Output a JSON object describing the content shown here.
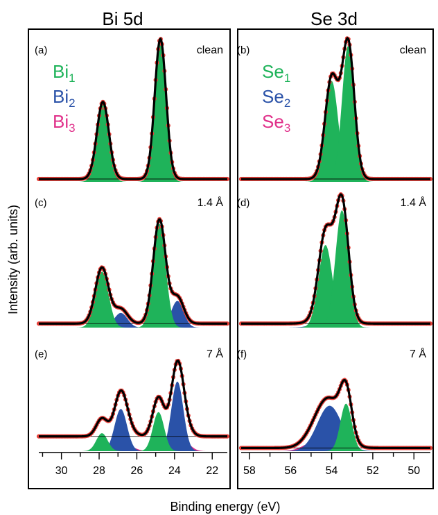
{
  "figure": {
    "ylabel": "Intensity (arb. units)",
    "xlabel": "Binding energy (eV)"
  },
  "columns": [
    {
      "title": "Bi 5d",
      "xlim": [
        31.2,
        21.2
      ],
      "ticks": [
        30,
        28,
        26,
        24,
        22
      ],
      "legend": [
        {
          "base": "Bi",
          "sub": "1",
          "color": "#1fb35a"
        },
        {
          "base": "Bi",
          "sub": "2",
          "color": "#2a52a8"
        },
        {
          "base": "Bi",
          "sub": "3",
          "color": "#e0308a"
        }
      ]
    },
    {
      "title": "Se 3d",
      "xlim": [
        58.4,
        49.2
      ],
      "ticks": [
        58,
        56,
        54,
        52,
        50
      ],
      "legend": [
        {
          "base": "Se",
          "sub": "1",
          "color": "#1fb35a"
        },
        {
          "base": "Se",
          "sub": "2",
          "color": "#2a52a8"
        },
        {
          "base": "Se",
          "sub": "3",
          "color": "#e0308a"
        }
      ]
    }
  ],
  "colors": {
    "component_1": "#1fb35a",
    "component_2": "#2a52a8",
    "component_3": "#e0308a",
    "data_points": "#e8413a",
    "fit_line": "#000000",
    "background_line": "#000000"
  },
  "chart_data": [
    {
      "type": "area",
      "panel": "(a)",
      "annotation": "clean",
      "xlim": [
        31.2,
        21.2
      ],
      "peaks": [
        {
          "component": 1,
          "center": 27.8,
          "height": 0.55,
          "width": 0.32
        },
        {
          "component": 1,
          "center": 24.75,
          "height": 1.0,
          "width": 0.3
        }
      ],
      "background": 0.02
    },
    {
      "type": "area",
      "panel": "(b)",
      "annotation": "clean",
      "xlim": [
        58.4,
        49.2
      ],
      "peaks": [
        {
          "component": 1,
          "center": 54.0,
          "height": 0.72,
          "width": 0.32
        },
        {
          "component": 1,
          "center": 53.2,
          "height": 0.97,
          "width": 0.3
        }
      ],
      "background": 0.02
    },
    {
      "type": "area",
      "panel": "(c)",
      "annotation": "1.4 Å",
      "xlim": [
        31.2,
        21.2
      ],
      "peaks": [
        {
          "component": 1,
          "center": 27.85,
          "height": 0.42,
          "width": 0.35
        },
        {
          "component": 2,
          "center": 26.85,
          "height": 0.11,
          "width": 0.35
        },
        {
          "component": 1,
          "center": 24.8,
          "height": 0.78,
          "width": 0.33
        },
        {
          "component": 2,
          "center": 23.85,
          "height": 0.2,
          "width": 0.33
        }
      ],
      "background": 0.03
    },
    {
      "type": "area",
      "panel": "(d)",
      "annotation": "1.4 Å",
      "xlim": [
        58.4,
        49.2
      ],
      "peaks": [
        {
          "component": 1,
          "center": 54.3,
          "height": 0.62,
          "width": 0.34
        },
        {
          "component": 1,
          "center": 53.5,
          "height": 0.88,
          "width": 0.32
        },
        {
          "component": 2,
          "center": 54.1,
          "height": 0.07,
          "width": 0.6
        }
      ],
      "background": 0.03
    },
    {
      "type": "area",
      "panel": "(e)",
      "annotation": "7 Å",
      "xlim": [
        31.2,
        21.2
      ],
      "peaks": [
        {
          "component": 1,
          "center": 27.85,
          "height": 0.17,
          "width": 0.3
        },
        {
          "component": 2,
          "center": 26.85,
          "height": 0.4,
          "width": 0.33
        },
        {
          "component": 1,
          "center": 24.85,
          "height": 0.37,
          "width": 0.3
        },
        {
          "component": 2,
          "center": 23.85,
          "height": 0.66,
          "width": 0.32
        },
        {
          "component": 3,
          "center": 26.5,
          "height": 0.05,
          "width": 0.4
        },
        {
          "component": 3,
          "center": 23.5,
          "height": 0.09,
          "width": 0.35
        }
      ],
      "background": 0.14
    },
    {
      "type": "area",
      "panel": "(f)",
      "annotation": "7 Å",
      "xlim": [
        58.4,
        49.2
      ],
      "peaks": [
        {
          "component": 3,
          "center": 54.8,
          "height": 0.09,
          "width": 0.55
        },
        {
          "component": 2,
          "center": 54.1,
          "height": 0.43,
          "width": 0.6
        },
        {
          "component": 1,
          "center": 53.3,
          "height": 0.45,
          "width": 0.28
        }
      ],
      "background": 0.03
    }
  ]
}
